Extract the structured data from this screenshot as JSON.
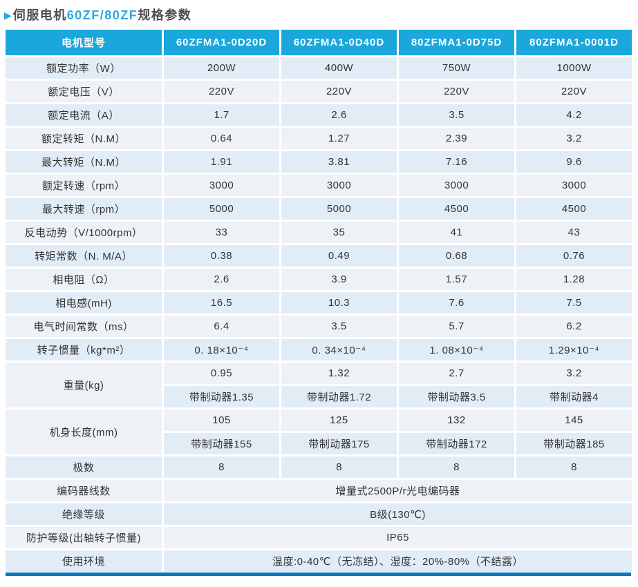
{
  "title": {
    "arrow": "▶",
    "prefix": "伺服电机",
    "highlight": "60ZF/80ZF",
    "suffix": "规格参数"
  },
  "colors": {
    "header_bg": "#1aa7dc",
    "row_tint_a": "#e2ecf6",
    "row_tint_b": "#eef1f5",
    "accent_blue": "#2ba9e0",
    "bottom_bar": "#0f76bb",
    "body_text": "#333333",
    "title_text": "#4d4d4d"
  },
  "icons": {
    "section_arrow": "right-triangle"
  },
  "table": {
    "header": [
      "电机型号",
      "60ZFMA1-0D20D",
      "60ZFMA1-0D40D",
      "80ZFMA1-0D75D",
      "80ZFMA1-0001D"
    ],
    "rows": [
      {
        "tint": "a",
        "label": "额定功率（W）",
        "values": [
          "200W",
          "400W",
          "750W",
          "1000W"
        ]
      },
      {
        "tint": "b",
        "label": "额定电压（V）",
        "values": [
          "220V",
          "220V",
          "220V",
          "220V"
        ]
      },
      {
        "tint": "a",
        "label": "额定电流（A）",
        "values": [
          "1.7",
          "2.6",
          "3.5",
          "4.2"
        ]
      },
      {
        "tint": "b",
        "label": "额定转矩（N.M）",
        "values": [
          "0.64",
          "1.27",
          "2.39",
          "3.2"
        ]
      },
      {
        "tint": "a",
        "label": "最大转矩（N.M）",
        "values": [
          "1.91",
          "3.81",
          "7.16",
          "9.6"
        ]
      },
      {
        "tint": "b",
        "label": "额定转速（rpm）",
        "values": [
          "3000",
          "3000",
          "3000",
          "3000"
        ]
      },
      {
        "tint": "a",
        "label": "最大转速（rpm）",
        "values": [
          "5000",
          "5000",
          "4500",
          "4500"
        ]
      },
      {
        "tint": "b",
        "label": "反电动势（V/1000rpm）",
        "values": [
          "33",
          "35",
          "41",
          "43"
        ]
      },
      {
        "tint": "a",
        "label": "转矩常数（N. M/A）",
        "values": [
          "0.38",
          "0.49",
          "0.68",
          "0.76"
        ]
      },
      {
        "tint": "b",
        "label": "相电阻（Ω）",
        "values": [
          "2.6",
          "3.9",
          "1.57",
          "1.28"
        ]
      },
      {
        "tint": "a",
        "label": "相电感(mH)",
        "values": [
          "16.5",
          "10.3",
          "7.6",
          "7.5"
        ]
      },
      {
        "tint": "b",
        "label": "电气时间常数（ms）",
        "values": [
          "6.4",
          "3.5",
          "5.7",
          "6.2"
        ]
      },
      {
        "tint": "a",
        "label": "转子惯量（kg*m²）",
        "values": [
          "0. 18×10⁻⁴",
          "0. 34×10⁻⁴",
          "1. 08×10⁻⁴",
          "1.29×10⁻⁴"
        ]
      },
      {
        "tint": "b",
        "label": "重量(kg)",
        "labelRowspan": 2,
        "values": [
          "0.95",
          "1.32",
          "2.7",
          "3.2"
        ]
      },
      {
        "tint": "a",
        "values": [
          "带制动器1.35",
          "带制动器1.72",
          "带制动器3.5",
          "带制动器4"
        ]
      },
      {
        "tint": "b",
        "label": "机身长度(mm)",
        "labelRowspan": 2,
        "values": [
          "105",
          "125",
          "132",
          "145"
        ]
      },
      {
        "tint": "a",
        "values": [
          "带制动器155",
          "带制动器175",
          "带制动器172",
          "带制动器185"
        ]
      },
      {
        "tint": "a",
        "label": "极数",
        "values": [
          "8",
          "8",
          "8",
          "8"
        ]
      },
      {
        "tint": "b",
        "label": "编码器线数",
        "merged": "增量式2500P/r光电编码器"
      },
      {
        "tint": "a",
        "label": "绝缘等级",
        "merged": "B级(130℃)"
      },
      {
        "tint": "b",
        "label": "防护等级(出轴转子惯量)",
        "merged": "IP65"
      },
      {
        "tint": "a",
        "label": "使用环境",
        "merged": "温度:0-40℃（无冻结）、湿度：20%-80%（不结露）"
      }
    ]
  }
}
